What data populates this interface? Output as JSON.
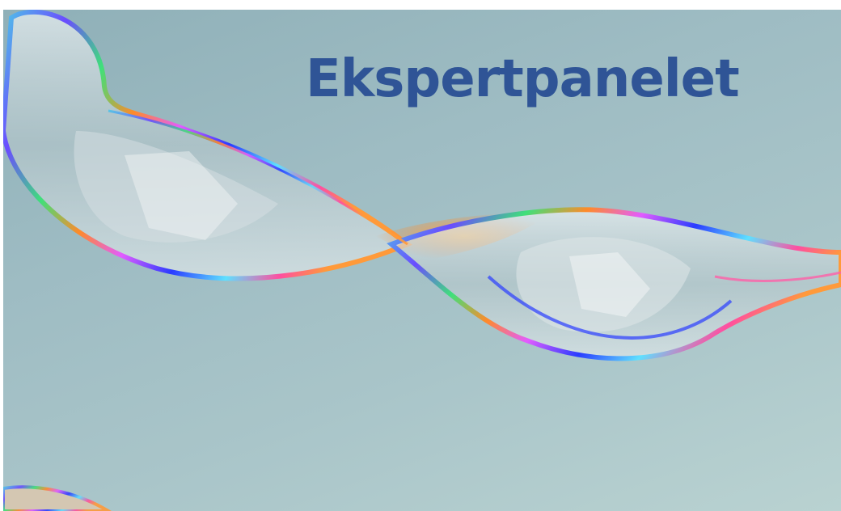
{
  "banner": {
    "title": "Ekspertpanelet",
    "image_subject": "iridescent-glass-ribbon",
    "colors": {
      "title": "#2f5496",
      "background": "#9ebcc3"
    }
  }
}
